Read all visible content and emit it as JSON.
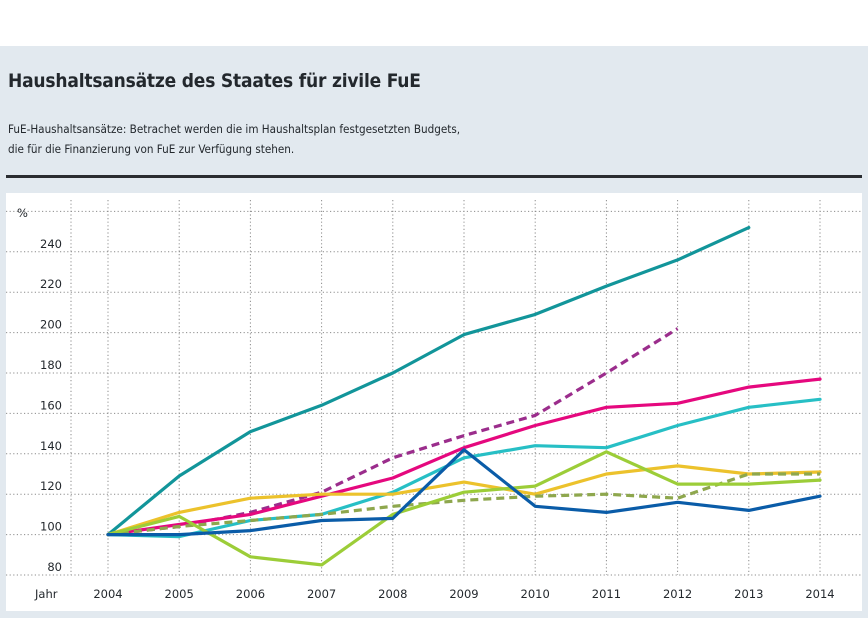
{
  "header": {
    "title": "Haushaltsansätze des Staates für zivile FuE",
    "subtitle_line1": "FuE-Haushaltsansätze: Betrachet werden die im Haushaltsplan festgesetzten Budgets,",
    "subtitle_line2": "die für die Finanzierung von FuE zur Verfügung stehen."
  },
  "chart_data": {
    "type": "line",
    "title": "Haushaltsansätze des Staates für zivile FuE",
    "xlabel": "Jahr",
    "ylabel": "%",
    "x": [
      "2004",
      "2005",
      "2006",
      "2007",
      "2008",
      "2009",
      "2010",
      "2011",
      "2012",
      "2013",
      "2014"
    ],
    "yticks": [
      80,
      100,
      120,
      140,
      160,
      180,
      200,
      220,
      240
    ],
    "ylim": [
      80,
      260
    ],
    "grid": true,
    "legend": "none",
    "series": [
      {
        "name": "Serie dunkeltürkis",
        "color": "#12959a",
        "dashed": false,
        "values": [
          100,
          129,
          151,
          164,
          180,
          199,
          209,
          223,
          236,
          252,
          null
        ]
      },
      {
        "name": "Serie lila gestrichelt",
        "color": "#9b2d8c",
        "dashed": true,
        "values": [
          100,
          104,
          111,
          121,
          138,
          149,
          159,
          180,
          202,
          null,
          null
        ]
      },
      {
        "name": "Serie magenta",
        "color": "#e5087e",
        "dashed": false,
        "values": [
          100,
          105,
          110,
          119,
          128,
          143,
          154,
          163,
          165,
          173,
          177
        ]
      },
      {
        "name": "Serie hellblau",
        "color": "#27bfc5",
        "dashed": false,
        "values": [
          100,
          99,
          107,
          110,
          121,
          138,
          144,
          143,
          154,
          163,
          167
        ]
      },
      {
        "name": "Serie gelb",
        "color": "#ecc22c",
        "dashed": false,
        "values": [
          100,
          111,
          118,
          120,
          120,
          126,
          120,
          130,
          134,
          130,
          131
        ]
      },
      {
        "name": "Serie olivgrün gestrichelt",
        "color": "#8ea74d",
        "dashed": true,
        "values": [
          100,
          104,
          107,
          110,
          114,
          117,
          119,
          120,
          118,
          130,
          130
        ]
      },
      {
        "name": "Serie hellgrün",
        "color": "#9ccd38",
        "dashed": false,
        "values": [
          100,
          109,
          89,
          85,
          110,
          121,
          124,
          141,
          125,
          125,
          127
        ]
      },
      {
        "name": "Serie dunkelblau",
        "color": "#0a5ca8",
        "dashed": false,
        "values": [
          100,
          100,
          102,
          107,
          108,
          142,
          114,
          111,
          116,
          112,
          119
        ]
      }
    ]
  }
}
